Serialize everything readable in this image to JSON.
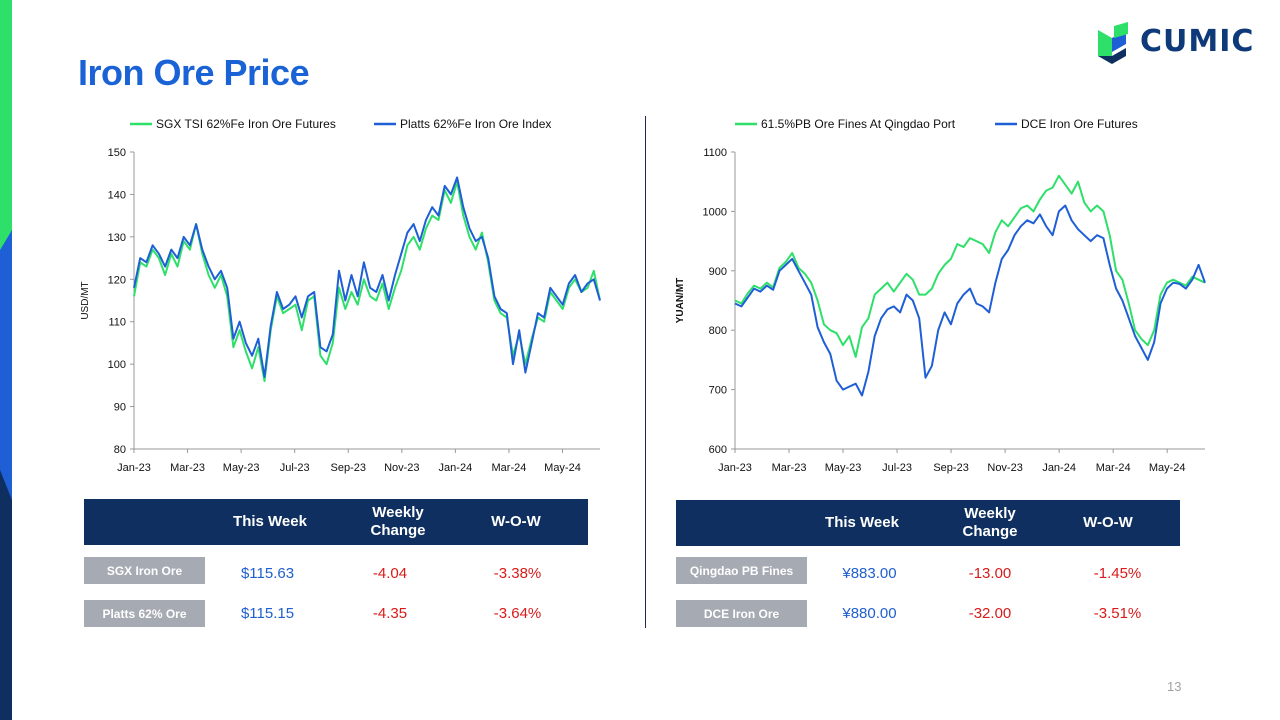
{
  "page": {
    "title": "Iron Ore Price",
    "page_number": "13"
  },
  "logo": {
    "text": "CUMIC"
  },
  "colors": {
    "green": "#2ee06a",
    "blue": "#1f5fd6",
    "navy": "#0e2f5f",
    "title_blue": "#1a63d6",
    "label_gray": "#a6aab3",
    "red": "#d91a1a"
  },
  "chart_data": [
    {
      "type": "line",
      "x_tick_labels": [
        "Jan-23",
        "Mar-23",
        "May-23",
        "Jul-23",
        "Sep-23",
        "Nov-23",
        "Jan-24",
        "Mar-24",
        "May-24"
      ],
      "ylabel": "USD/MT",
      "ylim": [
        80,
        150
      ],
      "yticks": [
        80,
        90,
        100,
        110,
        120,
        130,
        140,
        150
      ],
      "grid": false,
      "legend": "top",
      "series": [
        {
          "name": "SGX TSI 62%Fe Iron Ore Futures",
          "color": "#2ee06a",
          "values": [
            116,
            124,
            123,
            127,
            125,
            121,
            126,
            123,
            129,
            127,
            133,
            126,
            121,
            118,
            121,
            116,
            104,
            108,
            103,
            99,
            104,
            96,
            108,
            116,
            112,
            113,
            114,
            108,
            115,
            116,
            102,
            100,
            105,
            118,
            113,
            117,
            114,
            120,
            116,
            115,
            119,
            113,
            118,
            122,
            128,
            130,
            127,
            132,
            135,
            134,
            141,
            138,
            143,
            135,
            130,
            127,
            131,
            124,
            115,
            112,
            111,
            102,
            107,
            100,
            106,
            111,
            110,
            117,
            115,
            113,
            118,
            120,
            117,
            118,
            122,
            115
          ]
        },
        {
          "name": "Platts 62%Fe Iron Ore Index",
          "color": "#1f5fd6",
          "values": [
            118,
            125,
            124,
            128,
            126,
            123,
            127,
            125,
            130,
            128,
            133,
            127,
            123,
            120,
            122,
            118,
            106,
            110,
            105,
            102,
            106,
            97,
            109,
            117,
            113,
            114,
            116,
            111,
            116,
            117,
            104,
            103,
            107,
            122,
            115,
            121,
            116,
            124,
            118,
            117,
            121,
            115,
            121,
            126,
            131,
            133,
            129,
            134,
            137,
            135,
            142,
            140,
            144,
            137,
            132,
            129,
            130,
            125,
            116,
            113,
            112,
            100,
            108,
            98,
            105,
            112,
            111,
            118,
            116,
            114,
            119,
            121,
            117,
            119,
            120,
            115
          ]
        }
      ]
    },
    {
      "type": "line",
      "x_tick_labels": [
        "Jan-23",
        "Mar-23",
        "May-23",
        "Jul-23",
        "Sep-23",
        "Nov-23",
        "Jan-24",
        "Mar-24",
        "May-24"
      ],
      "ylabel": "YUAN/MT",
      "ylim": [
        600,
        1100
      ],
      "yticks": [
        600,
        700,
        800,
        900,
        1000,
        1100
      ],
      "grid": false,
      "legend": "top",
      "series": [
        {
          "name": "61.5%PB Ore Fines At Qingdao Port",
          "color": "#2ee06a",
          "values": [
            850,
            845,
            862,
            875,
            870,
            880,
            872,
            905,
            915,
            930,
            905,
            895,
            880,
            850,
            810,
            800,
            795,
            775,
            790,
            755,
            805,
            820,
            860,
            870,
            880,
            865,
            880,
            895,
            885,
            860,
            860,
            870,
            895,
            910,
            920,
            945,
            940,
            955,
            950,
            945,
            930,
            965,
            985,
            975,
            990,
            1005,
            1010,
            1000,
            1020,
            1035,
            1040,
            1060,
            1045,
            1030,
            1050,
            1015,
            1000,
            1010,
            1000,
            960,
            900,
            885,
            845,
            800,
            785,
            775,
            800,
            860,
            880,
            885,
            880,
            875,
            890,
            885,
            880
          ]
        },
        {
          "name": "DCE Iron Ore Futures",
          "color": "#1f5fd6",
          "values": [
            845,
            840,
            855,
            870,
            865,
            875,
            868,
            900,
            910,
            920,
            900,
            880,
            860,
            805,
            780,
            760,
            715,
            700,
            705,
            710,
            690,
            730,
            790,
            820,
            835,
            840,
            830,
            860,
            850,
            820,
            720,
            740,
            800,
            830,
            810,
            845,
            860,
            870,
            845,
            840,
            830,
            880,
            920,
            935,
            960,
            975,
            985,
            980,
            995,
            975,
            960,
            1000,
            1010,
            985,
            970,
            960,
            950,
            960,
            955,
            910,
            870,
            850,
            820,
            790,
            770,
            750,
            780,
            845,
            870,
            880,
            878,
            870,
            885,
            910,
            880
          ]
        }
      ]
    }
  ],
  "tables": [
    {
      "headers": [
        "This Week",
        "Weekly Change",
        "W-O-W"
      ],
      "rows": [
        {
          "label": "SGX Iron Ore",
          "this_week": "$115.63",
          "weekly_change": "-4.04",
          "wow": "-3.38%"
        },
        {
          "label": "Platts 62% Ore",
          "this_week": "$115.15",
          "weekly_change": "-4.35",
          "wow": "-3.64%"
        }
      ]
    },
    {
      "headers": [
        "This Week",
        "Weekly Change",
        "W-O-W"
      ],
      "rows": [
        {
          "label": "Qingdao PB Fines",
          "this_week": "¥883.00",
          "weekly_change": "-13.00",
          "wow": "-1.45%"
        },
        {
          "label": "DCE Iron Ore",
          "this_week": "¥880.00",
          "weekly_change": "-32.00",
          "wow": "-3.51%"
        }
      ]
    }
  ]
}
